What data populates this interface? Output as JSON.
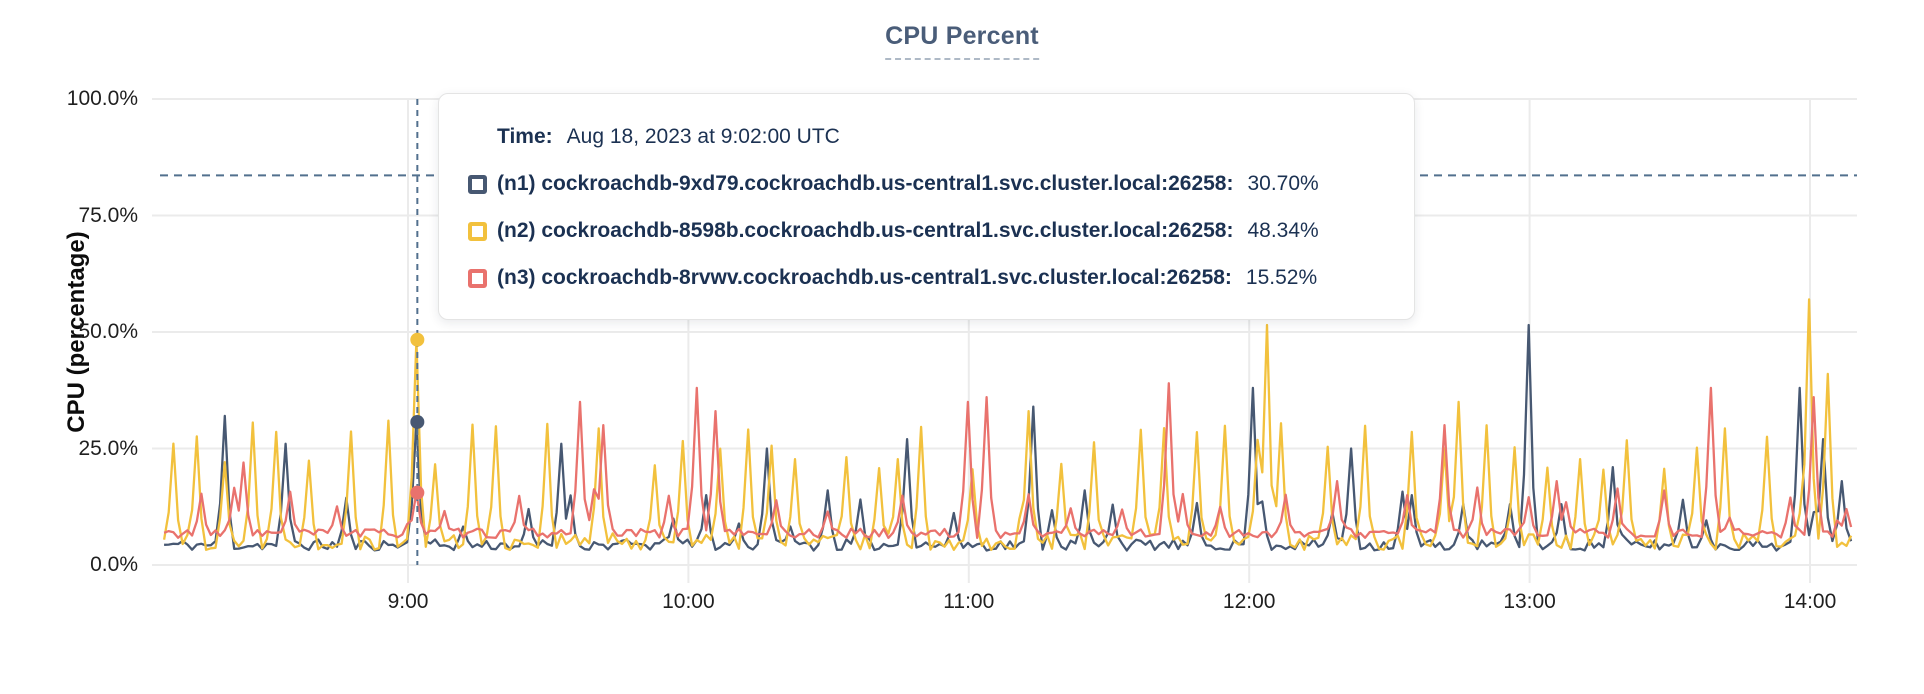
{
  "header": {
    "title": "CPU Percent"
  },
  "y_axis": {
    "label": "CPU (percentage)",
    "ticks": [
      "100.0%",
      "75.0%",
      "50.0%",
      "25.0%",
      "0.0%"
    ]
  },
  "x_axis": {
    "ticks": [
      "9:00",
      "10:00",
      "11:00",
      "12:00",
      "13:00",
      "14:00"
    ]
  },
  "tooltip": {
    "time_label": "Time:",
    "time_value": "Aug 18, 2023 at 9:02:00 UTC",
    "series": [
      {
        "id": "n1",
        "label": "(n1) cockroachdb-9xd79.cockroachdb.us-central1.svc.cluster.local:26258:",
        "value": "30.70%",
        "color": "#475872"
      },
      {
        "id": "n2",
        "label": "(n2) cockroachdb-8598b.cockroachdb.us-central1.svc.cluster.local:26258:",
        "value": "48.34%",
        "color": "#F2C13D"
      },
      {
        "id": "n3",
        "label": "(n3) cockroachdb-8rvwv.cockroachdb.us-central1.svc.cluster.local:26258:",
        "value": "15.52%",
        "color": "#E9726D"
      }
    ]
  },
  "chart_data": {
    "type": "line",
    "title": "CPU Percent",
    "xlabel": "",
    "ylabel": "CPU (percentage)",
    "ylim": [
      0,
      100
    ],
    "grid": true,
    "legend_position": "tooltip-overlay",
    "y_ticks_pct": [
      100,
      75,
      50,
      25,
      0
    ],
    "x_tick_hours": [
      9,
      10,
      11,
      12,
      13,
      14
    ],
    "x_range_hours": [
      8.13,
      14.14
    ],
    "threshold_pct": 83.6,
    "threshold_color": "#52708E",
    "gridline_color": "#EBEBEB",
    "hover": {
      "time_hours": 9.0333,
      "time_label": "Aug 18, 2023 at 9:02:00 UTC",
      "values_pct": [
        30.7,
        48.34,
        15.52
      ]
    },
    "series": [
      {
        "name": "(n1) cockroachdb-9xd79.cockroachdb.us-central1.svc.cluster.local:26258",
        "color": "#475872",
        "seed": 11,
        "baseline_pct": 4.3,
        "noise_pct": 1.2,
        "spike_every_min": 16,
        "spike_min_pct": 8,
        "spike_max_pct": 16,
        "peaks": [
          {
            "t": 8.35,
            "v": 32
          },
          {
            "t": 8.57,
            "v": 26
          },
          {
            "t": 9.033,
            "v": 30.7
          },
          {
            "t": 9.55,
            "v": 26
          },
          {
            "t": 10.07,
            "v": 15
          },
          {
            "t": 10.28,
            "v": 25
          },
          {
            "t": 10.5,
            "v": 16
          },
          {
            "t": 10.78,
            "v": 27
          },
          {
            "t": 11.23,
            "v": 34
          },
          {
            "t": 11.42,
            "v": 16
          },
          {
            "t": 12.02,
            "v": 38
          },
          {
            "t": 12.37,
            "v": 25
          },
          {
            "t": 12.58,
            "v": 15
          },
          {
            "t": 13.0,
            "v": 51.5
          },
          {
            "t": 13.3,
            "v": 21
          },
          {
            "t": 13.55,
            "v": 14
          },
          {
            "t": 13.97,
            "v": 38
          },
          {
            "t": 14.05,
            "v": 27
          },
          {
            "t": 14.12,
            "v": 18
          }
        ]
      },
      {
        "name": "(n2) cockroachdb-8598b.cockroachdb.us-central1.svc.cluster.local:26258",
        "color": "#F2C13D",
        "seed": 22,
        "baseline_pct": 5.0,
        "noise_pct": 1.8,
        "spike_every_min": 8,
        "spike_min_pct": 20,
        "spike_max_pct": 31,
        "peaks": [
          {
            "t": 9.033,
            "v": 48.34
          },
          {
            "t": 11.22,
            "v": 33
          },
          {
            "t": 12.07,
            "v": 51.5
          },
          {
            "t": 12.75,
            "v": 35
          },
          {
            "t": 13.99,
            "v": 57
          },
          {
            "t": 14.07,
            "v": 41
          }
        ]
      },
      {
        "name": "(n3) cockroachdb-8rvwv.cockroachdb.us-central1.svc.cluster.local:26258",
        "color": "#E9726D",
        "seed": 33,
        "baseline_pct": 6.8,
        "noise_pct": 1.0,
        "spike_every_min": 11,
        "spike_min_pct": 10,
        "spike_max_pct": 17,
        "peaks": [
          {
            "t": 8.42,
            "v": 22
          },
          {
            "t": 9.033,
            "v": 15.52
          },
          {
            "t": 9.62,
            "v": 35
          },
          {
            "t": 9.7,
            "v": 30
          },
          {
            "t": 10.03,
            "v": 38
          },
          {
            "t": 10.09,
            "v": 33
          },
          {
            "t": 11.0,
            "v": 35
          },
          {
            "t": 11.06,
            "v": 36
          },
          {
            "t": 11.72,
            "v": 39
          },
          {
            "t": 12.32,
            "v": 18
          },
          {
            "t": 12.7,
            "v": 30
          },
          {
            "t": 13.1,
            "v": 18
          },
          {
            "t": 13.65,
            "v": 38
          },
          {
            "t": 14.02,
            "v": 36
          },
          {
            "t": 14.13,
            "v": 12
          }
        ]
      }
    ]
  }
}
